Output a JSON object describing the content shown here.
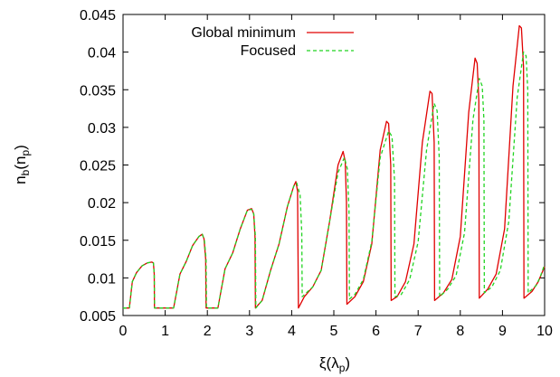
{
  "chart_data": {
    "type": "line",
    "xlabel_main": "ξ(λ",
    "xlabel_sub": "p",
    "xlabel_close": ")",
    "ylabel_main": "n",
    "ylabel_sub1": "b",
    "ylabel_mid": "(n",
    "ylabel_sub2": "p",
    "ylabel_close": ")",
    "xlim": [
      0,
      10
    ],
    "ylim": [
      0.005,
      0.045
    ],
    "xticks": [
      0,
      1,
      2,
      3,
      4,
      5,
      6,
      7,
      8,
      9,
      10
    ],
    "xtick_labels": [
      "0",
      "1",
      "2",
      "3",
      "4",
      "5",
      "6",
      "7",
      "8",
      "9",
      "10"
    ],
    "yticks": [
      0.005,
      0.01,
      0.015,
      0.02,
      0.025,
      0.03,
      0.035,
      0.04,
      0.045
    ],
    "ytick_labels": [
      "0.005",
      "0.01",
      "0.015",
      "0.02",
      "0.025",
      "0.03",
      "0.035",
      "0.04",
      "0.045"
    ],
    "grid": false,
    "legend_position": "top-right",
    "series": [
      {
        "name": "Global minimum",
        "color": "#e00000",
        "dash": "solid",
        "points": [
          [
            0,
            0.006
          ],
          [
            0.15,
            0.006
          ],
          [
            0.22,
            0.0095
          ],
          [
            0.32,
            0.0107
          ],
          [
            0.45,
            0.0116
          ],
          [
            0.58,
            0.012
          ],
          [
            0.68,
            0.0121
          ],
          [
            0.72,
            0.012
          ],
          [
            0.74,
            0.0105
          ],
          [
            0.745,
            0.006
          ],
          [
            1.2,
            0.006
          ],
          [
            1.35,
            0.0105
          ],
          [
            1.5,
            0.0122
          ],
          [
            1.65,
            0.0143
          ],
          [
            1.8,
            0.0155
          ],
          [
            1.88,
            0.0158
          ],
          [
            1.92,
            0.0152
          ],
          [
            1.96,
            0.0125
          ],
          [
            1.97,
            0.006
          ],
          [
            2.25,
            0.006
          ],
          [
            2.42,
            0.0112
          ],
          [
            2.6,
            0.0133
          ],
          [
            2.78,
            0.0165
          ],
          [
            2.95,
            0.019
          ],
          [
            3.05,
            0.0192
          ],
          [
            3.1,
            0.0185
          ],
          [
            3.13,
            0.0155
          ],
          [
            3.14,
            0.006
          ],
          [
            3.3,
            0.007
          ],
          [
            3.5,
            0.011
          ],
          [
            3.7,
            0.0145
          ],
          [
            3.9,
            0.0195
          ],
          [
            4.05,
            0.0222
          ],
          [
            4.1,
            0.0228
          ],
          [
            4.14,
            0.0215
          ],
          [
            4.16,
            0.006
          ],
          [
            4.3,
            0.0075
          ],
          [
            4.5,
            0.0088
          ],
          [
            4.7,
            0.011
          ],
          [
            4.9,
            0.0175
          ],
          [
            5.1,
            0.025
          ],
          [
            5.22,
            0.0268
          ],
          [
            5.27,
            0.0255
          ],
          [
            5.3,
            0.02
          ],
          [
            5.31,
            0.0065
          ],
          [
            5.5,
            0.0075
          ],
          [
            5.7,
            0.0095
          ],
          [
            5.9,
            0.0145
          ],
          [
            6.1,
            0.027
          ],
          [
            6.25,
            0.0308
          ],
          [
            6.3,
            0.0305
          ],
          [
            6.35,
            0.025
          ],
          [
            6.36,
            0.007
          ],
          [
            6.5,
            0.0075
          ],
          [
            6.7,
            0.0095
          ],
          [
            6.9,
            0.0145
          ],
          [
            7.1,
            0.028
          ],
          [
            7.28,
            0.0348
          ],
          [
            7.33,
            0.0345
          ],
          [
            7.38,
            0.028
          ],
          [
            7.39,
            0.007
          ],
          [
            7.6,
            0.008
          ],
          [
            7.8,
            0.0098
          ],
          [
            8.0,
            0.0155
          ],
          [
            8.2,
            0.032
          ],
          [
            8.35,
            0.0392
          ],
          [
            8.4,
            0.0385
          ],
          [
            8.44,
            0.0335
          ],
          [
            8.45,
            0.0073
          ],
          [
            8.65,
            0.0085
          ],
          [
            8.85,
            0.0105
          ],
          [
            9.05,
            0.0165
          ],
          [
            9.25,
            0.0355
          ],
          [
            9.4,
            0.0435
          ],
          [
            9.45,
            0.0432
          ],
          [
            9.5,
            0.038
          ],
          [
            9.51,
            0.0073
          ],
          [
            9.7,
            0.0082
          ],
          [
            9.85,
            0.0095
          ],
          [
            10,
            0.0115
          ]
        ]
      },
      {
        "name": "Focused",
        "color": "#22d422",
        "dash": "4,3",
        "points": [
          [
            0,
            0.006
          ],
          [
            0.15,
            0.006
          ],
          [
            0.22,
            0.0095
          ],
          [
            0.32,
            0.0107
          ],
          [
            0.45,
            0.0116
          ],
          [
            0.58,
            0.012
          ],
          [
            0.68,
            0.0121
          ],
          [
            0.72,
            0.012
          ],
          [
            0.74,
            0.0105
          ],
          [
            0.75,
            0.006
          ],
          [
            1.2,
            0.006
          ],
          [
            1.35,
            0.0105
          ],
          [
            1.5,
            0.0122
          ],
          [
            1.65,
            0.0143
          ],
          [
            1.8,
            0.0155
          ],
          [
            1.88,
            0.0158
          ],
          [
            1.93,
            0.015
          ],
          [
            1.97,
            0.0125
          ],
          [
            1.98,
            0.006
          ],
          [
            2.25,
            0.006
          ],
          [
            2.42,
            0.0112
          ],
          [
            2.6,
            0.0133
          ],
          [
            2.78,
            0.0165
          ],
          [
            2.95,
            0.019
          ],
          [
            3.05,
            0.0191
          ],
          [
            3.1,
            0.0185
          ],
          [
            3.14,
            0.0155
          ],
          [
            3.15,
            0.006
          ],
          [
            3.3,
            0.007
          ],
          [
            3.5,
            0.011
          ],
          [
            3.7,
            0.0145
          ],
          [
            3.9,
            0.0195
          ],
          [
            4.05,
            0.0222
          ],
          [
            4.12,
            0.0226
          ],
          [
            4.2,
            0.021
          ],
          [
            4.24,
            0.016
          ],
          [
            4.25,
            0.0075
          ],
          [
            4.5,
            0.0088
          ],
          [
            4.7,
            0.011
          ],
          [
            4.9,
            0.0175
          ],
          [
            5.1,
            0.024
          ],
          [
            5.25,
            0.026
          ],
          [
            5.32,
            0.0245
          ],
          [
            5.36,
            0.019
          ],
          [
            5.37,
            0.0072
          ],
          [
            5.5,
            0.0078
          ],
          [
            5.7,
            0.0098
          ],
          [
            5.9,
            0.0148
          ],
          [
            6.1,
            0.026
          ],
          [
            6.3,
            0.0295
          ],
          [
            6.38,
            0.0288
          ],
          [
            6.44,
            0.023
          ],
          [
            6.45,
            0.0075
          ],
          [
            6.6,
            0.0078
          ],
          [
            6.8,
            0.0098
          ],
          [
            7.0,
            0.0148
          ],
          [
            7.2,
            0.027
          ],
          [
            7.38,
            0.0332
          ],
          [
            7.45,
            0.0322
          ],
          [
            7.5,
            0.026
          ],
          [
            7.51,
            0.0075
          ],
          [
            7.7,
            0.0085
          ],
          [
            7.9,
            0.0103
          ],
          [
            8.1,
            0.016
          ],
          [
            8.3,
            0.031
          ],
          [
            8.45,
            0.0365
          ],
          [
            8.52,
            0.0355
          ],
          [
            8.56,
            0.031
          ],
          [
            8.57,
            0.008
          ],
          [
            8.75,
            0.0088
          ],
          [
            8.95,
            0.011
          ],
          [
            9.15,
            0.0175
          ],
          [
            9.35,
            0.034
          ],
          [
            9.5,
            0.04
          ],
          [
            9.56,
            0.0395
          ],
          [
            9.6,
            0.035
          ],
          [
            9.61,
            0.008
          ],
          [
            9.8,
            0.009
          ],
          [
            9.9,
            0.0102
          ],
          [
            10,
            0.0118
          ]
        ]
      }
    ]
  }
}
